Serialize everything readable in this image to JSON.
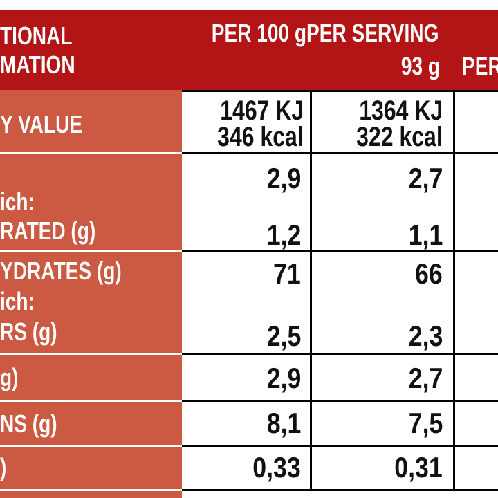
{
  "header": {
    "title_line1": "TIONAL",
    "title_line2": "MATION",
    "col1": "PER 100 g",
    "col2_line1": "PER SERVING",
    "col2_line2": "93 g",
    "col3": "PER"
  },
  "rows": {
    "energy": {
      "label": "Y VALUE",
      "kj_100": "1467 KJ",
      "kcal_100": "346 kcal",
      "kj_serv": "1364 KJ",
      "kcal_serv": "322 kcal"
    },
    "fat": {
      "sub_label": "ich:",
      "label_sat": "RATED (g)",
      "per100": "2,9",
      "per_serving": "2,7",
      "sat_per100": "1,2",
      "sat_per_serving": "1,1"
    },
    "carbs": {
      "label": "YDRATES (g)",
      "sub_label": "ich:",
      "label_sug": "RS (g)",
      "per100": "71",
      "per_serving": "66",
      "sug_per100": "2,5",
      "sug_per_serving": "2,3"
    },
    "fibre": {
      "label": "g)",
      "per100": "2,9",
      "per_serving": "2,7"
    },
    "protein": {
      "label": "NS (g)",
      "per100": "8,1",
      "per_serving": "7,5"
    },
    "salt": {
      "label": ")",
      "per100": "0,33",
      "per_serving": "0,31"
    }
  },
  "colors": {
    "header": "#b31517",
    "label_column": "#cc5a42",
    "text_dark": "#111111"
  }
}
